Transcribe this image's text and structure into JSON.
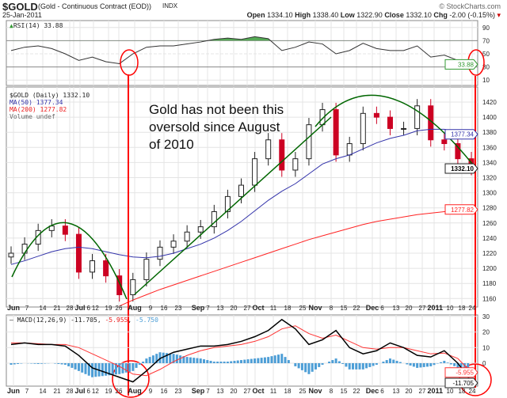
{
  "header": {
    "symbol": "$GOLD",
    "name": "(Gold - Continuous Contract (EOD))",
    "exchange": "INDX",
    "date": "25-Jan-2011",
    "brand": "© StockCharts.com",
    "open_label": "Open",
    "open": "1334.10",
    "high_label": "High",
    "high": "1338.40",
    "low_label": "Low",
    "low": "1322.90",
    "close_label": "Close",
    "close": "1332.10",
    "chg_label": "Chg",
    "chg": "-2.00 (-0.15%)"
  },
  "annotation": "Gold has not been this oversold since August of 2010",
  "chart_data": [
    {
      "type": "line",
      "title": "RSI(14) 33.88",
      "panel": "rsi",
      "yticks": [
        90,
        70,
        50,
        30,
        10
      ],
      "ylim": [
        0,
        100
      ],
      "last_label": "33.88",
      "values": [
        55,
        60,
        62,
        58,
        50,
        40,
        45,
        38,
        35,
        50,
        60,
        62,
        62,
        65,
        68,
        72,
        74,
        72,
        76,
        73,
        55,
        60,
        68,
        65,
        50,
        55,
        66,
        58,
        55,
        55,
        62,
        45,
        48,
        40,
        33.88
      ]
    },
    {
      "type": "candlestick",
      "title": "$GOLD (Daily) 1332.10",
      "panel": "price",
      "legend": [
        "$GOLD (Daily) 1332.10",
        "MA(50) 1377.34",
        "MA(200) 1277.82",
        "Volume undef"
      ],
      "yticks": [
        1420,
        1400,
        1380,
        1360,
        1340,
        1320,
        1300,
        1280,
        1260,
        1240,
        1220,
        1200,
        1180,
        1160
      ],
      "ylim": [
        1150,
        1430
      ],
      "x": [
        "Jun 1",
        "Jun 7",
        "Jun 14",
        "Jun 21",
        "Jun 28",
        "Jul 6",
        "Jul 12",
        "Jul 19",
        "Jul 26",
        "Aug 2",
        "Aug 9",
        "Aug 16",
        "Aug 23",
        "Aug 30",
        "Sep 7",
        "Sep 13",
        "Sep 20",
        "Sep 27",
        "Oct 4",
        "Oct 11",
        "Oct 18",
        "Oct 25",
        "Nov 1",
        "Nov 8",
        "Nov 15",
        "Nov 22",
        "Nov 29",
        "Dec 6",
        "Dec 13",
        "Dec 20",
        "Dec 27",
        "Jan 3",
        "Jan 10",
        "Jan 18",
        "Jan 24"
      ],
      "close": [
        1220,
        1232,
        1250,
        1256,
        1245,
        1195,
        1210,
        1190,
        1165,
        1185,
        1212,
        1228,
        1236,
        1248,
        1255,
        1275,
        1295,
        1310,
        1345,
        1370,
        1330,
        1345,
        1390,
        1410,
        1350,
        1365,
        1405,
        1400,
        1385,
        1385,
        1415,
        1370,
        1365,
        1345,
        1332.1
      ],
      "ma50": [
        1205,
        1210,
        1216,
        1222,
        1226,
        1228,
        1226,
        1222,
        1218,
        1215,
        1214,
        1216,
        1220,
        1226,
        1232,
        1240,
        1250,
        1262,
        1276,
        1290,
        1302,
        1312,
        1325,
        1338,
        1345,
        1350,
        1358,
        1366,
        1372,
        1376,
        1382,
        1384,
        1384,
        1380,
        1377.34
      ],
      "ma200": [
        null,
        null,
        null,
        null,
        null,
        null,
        null,
        null,
        1150,
        1158,
        1165,
        1172,
        1178,
        1184,
        1190,
        1196,
        1202,
        1208,
        1214,
        1220,
        1226,
        1232,
        1238,
        1243,
        1248,
        1253,
        1258,
        1262,
        1265,
        1268,
        1271,
        1273,
        1275,
        1276,
        1277.82
      ],
      "last_labels": {
        "ma50": "1377.34",
        "close": "1332.10",
        "ma200": "1277.82"
      },
      "xticks": [
        "Jun",
        "7",
        "14",
        "21",
        "28",
        "Jul",
        "6",
        "12",
        "19",
        "26",
        "Aug",
        "9",
        "16",
        "23",
        "Sep",
        "7",
        "13",
        "20",
        "27",
        "Oct",
        "11",
        "18",
        "25",
        "Nov",
        "8",
        "15",
        "22",
        "Dec",
        "6",
        "13",
        "20",
        "27",
        "2011",
        "10",
        "18",
        "24"
      ]
    },
    {
      "type": "line",
      "title": "MACD(12,26,9)",
      "panel": "macd",
      "legend": {
        "label": "MACD(12,26,9)",
        "macd": "-11.705",
        "signal": "-5.955",
        "hist": "-5.750"
      },
      "yticks": [
        30,
        20,
        10,
        0
      ],
      "ylim": [
        -16,
        32
      ],
      "macd": [
        12,
        13,
        12,
        12,
        11,
        5,
        -3,
        -6,
        -9,
        -12,
        -5,
        3,
        7,
        9,
        11,
        11,
        12,
        14,
        17,
        21,
        28,
        22,
        12,
        15,
        21,
        10,
        6,
        8,
        13,
        10,
        5,
        4,
        8,
        0,
        -11.705
      ],
      "signal": [
        13,
        13,
        12.5,
        12,
        12,
        10,
        6,
        2,
        -2,
        -7,
        -8,
        -4,
        1,
        5,
        8,
        10,
        11,
        12,
        14,
        17,
        22,
        24,
        19,
        16,
        18,
        14,
        10,
        9,
        10,
        10,
        8,
        6,
        6.5,
        3,
        -5.955
      ],
      "last_labels": {
        "signal": "-5.955",
        "macd": "-11.705"
      }
    }
  ],
  "colors": {
    "price_up": "#222222",
    "price_down": "#cc0022",
    "ma50": "#3333aa",
    "ma200": "#ff2222",
    "rsi_fill": "#55aa55",
    "hist": "#4d9ed6",
    "annotation": "#ff0000",
    "trend": "#006600",
    "macd_line": "#000000",
    "signal_line": "#ff3333"
  }
}
